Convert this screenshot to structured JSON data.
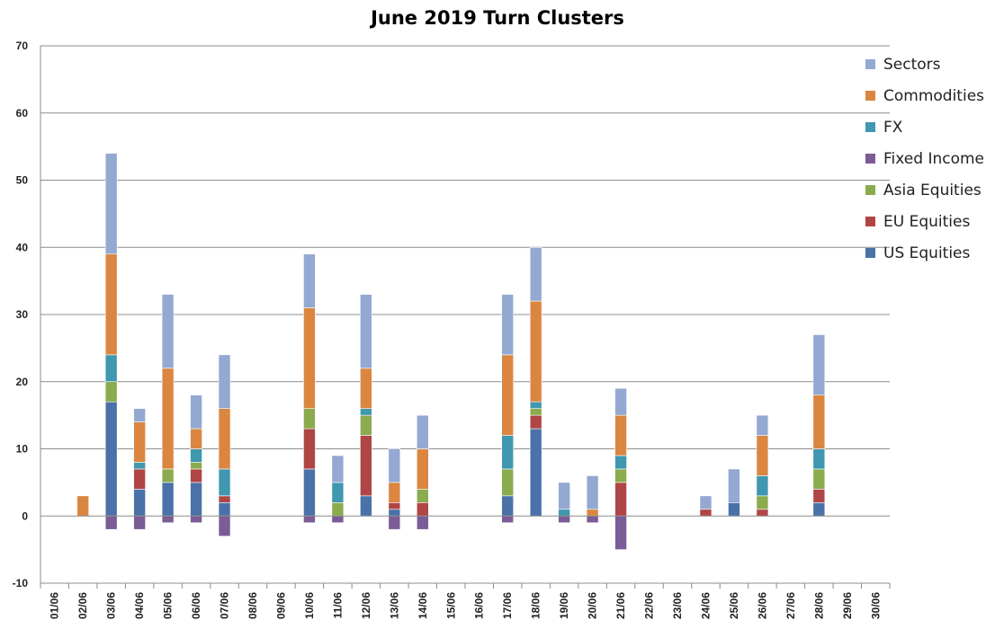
{
  "chart_data": {
    "type": "bar",
    "stacked": true,
    "title": "June 2019 Turn Clusters",
    "xlabel": "",
    "ylabel": "",
    "ylim": [
      -10,
      70
    ],
    "yticks": [
      -10,
      0,
      10,
      20,
      30,
      40,
      50,
      60,
      70
    ],
    "grid": true,
    "legend_position": "right",
    "categories": [
      "01/06",
      "02/06",
      "03/06",
      "04/06",
      "05/06",
      "06/06",
      "07/06",
      "08/06",
      "09/06",
      "10/06",
      "11/06",
      "12/06",
      "13/06",
      "14/06",
      "15/06",
      "16/06",
      "17/06",
      "18/06",
      "19/06",
      "20/06",
      "21/06",
      "22/06",
      "23/06",
      "24/06",
      "25/06",
      "26/06",
      "27/06",
      "28/06",
      "29/06",
      "30/06"
    ],
    "series": [
      {
        "name": "US Equities",
        "color": "#4a72a8",
        "values": [
          0,
          0,
          17,
          4,
          5,
          5,
          2,
          0,
          0,
          7,
          0,
          3,
          1,
          0,
          0,
          0,
          3,
          13,
          0,
          0,
          0,
          0,
          0,
          0,
          2,
          0,
          0,
          2,
          0,
          0
        ]
      },
      {
        "name": "EU Equities",
        "color": "#b04545",
        "values": [
          0,
          0,
          0,
          3,
          0,
          2,
          1,
          0,
          0,
          6,
          0,
          9,
          1,
          2,
          0,
          0,
          0,
          2,
          0,
          0,
          5,
          0,
          0,
          1,
          0,
          1,
          0,
          2,
          0,
          0
        ]
      },
      {
        "name": "Asia Equities",
        "color": "#8aab4e",
        "values": [
          0,
          0,
          3,
          0,
          2,
          1,
          0,
          0,
          0,
          3,
          2,
          3,
          0,
          2,
          0,
          0,
          4,
          1,
          0,
          0,
          2,
          0,
          0,
          0,
          0,
          2,
          0,
          3,
          0,
          0
        ]
      },
      {
        "name": "Fixed Income",
        "color": "#7a5c96",
        "values": [
          0,
          0,
          -2,
          -2,
          -1,
          -1,
          -3,
          0,
          0,
          -1,
          -1,
          0,
          -2,
          -2,
          0,
          0,
          -1,
          0,
          -1,
          -1,
          -5,
          0,
          0,
          0,
          0,
          0,
          0,
          0,
          0,
          0
        ]
      },
      {
        "name": "FX",
        "color": "#3f97b0",
        "values": [
          0,
          0,
          4,
          1,
          0,
          2,
          4,
          0,
          0,
          0,
          3,
          1,
          0,
          0,
          0,
          0,
          5,
          1,
          1,
          0,
          2,
          0,
          0,
          0,
          0,
          3,
          0,
          3,
          0,
          0
        ]
      },
      {
        "name": "Commodities",
        "color": "#db8640",
        "values": [
          0,
          3,
          15,
          6,
          15,
          3,
          9,
          0,
          0,
          15,
          0,
          6,
          3,
          6,
          0,
          0,
          12,
          15,
          0,
          1,
          6,
          0,
          0,
          0,
          0,
          6,
          0,
          8,
          0,
          0
        ]
      },
      {
        "name": "Sectors",
        "color": "#93a9d1",
        "values": [
          0,
          0,
          15,
          2,
          11,
          5,
          8,
          0,
          0,
          8,
          4,
          11,
          5,
          5,
          0,
          0,
          9,
          8,
          4,
          5,
          4,
          0,
          0,
          2,
          5,
          3,
          0,
          9,
          0,
          0
        ]
      }
    ]
  }
}
